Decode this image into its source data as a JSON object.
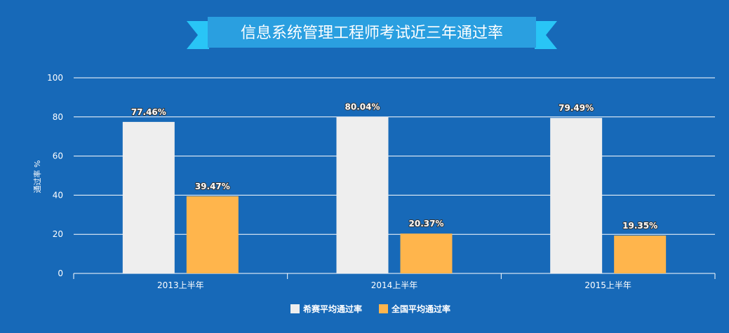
{
  "chart_data": {
    "type": "bar",
    "title": "信息系统管理工程师考试近三年通过率",
    "ylabel": "通过率 %",
    "xlabel": "",
    "ylim": [
      0,
      100
    ],
    "yticks": [
      0,
      20,
      40,
      60,
      80,
      100
    ],
    "categories": [
      "2013上半年",
      "2014上半年",
      "2015上半年"
    ],
    "series": [
      {
        "name": "希赛平均通过率",
        "values": [
          77.46,
          80.04,
          79.49
        ],
        "labels": [
          "77.46%",
          "80.04%",
          "79.49%"
        ],
        "color": "#eeeeee"
      },
      {
        "name": "全国平均通过率",
        "values": [
          39.47,
          20.37,
          19.35
        ],
        "labels": [
          "39.47%",
          "20.37%",
          "19.35%"
        ],
        "color": "#ffb54c"
      }
    ],
    "grid": true,
    "legend": "bottom-center"
  },
  "colors": {
    "background": "#1769b8",
    "ribbon": "#2a9fe0",
    "ribbon_tail": "#29c5f6",
    "gridline": "#ffffff"
  }
}
